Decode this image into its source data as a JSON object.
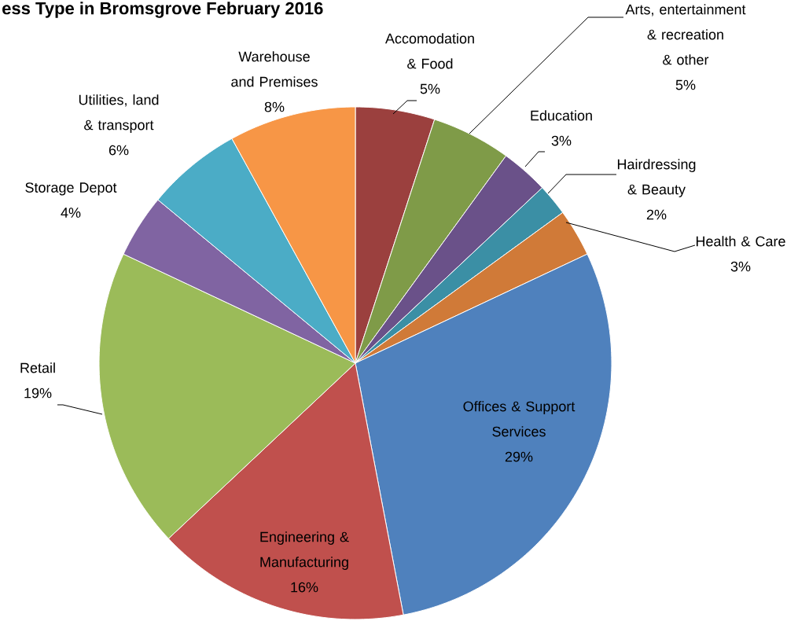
{
  "chart_data": {
    "type": "pie",
    "title": "ess Type in Bromsgrove February 2016",
    "categories": [
      "Accomodation & Food",
      "Arts, entertainment & recreation & other",
      "Education",
      "Hairdressing & Beauty",
      "Health & Care",
      "Offices & Support Services",
      "Engineering & Manufacturing",
      "Retail",
      "Storage Depot",
      "Utilities, land & transport",
      "Warehouse and Premises"
    ],
    "values": [
      5,
      5,
      3,
      2,
      3,
      29,
      16,
      19,
      4,
      6,
      8
    ],
    "value_labels": [
      "5%",
      "5%",
      "3%",
      "2%",
      "3%",
      "29%",
      "16%",
      "19%",
      "4%",
      "6%",
      "8%"
    ],
    "colors": [
      "#9b403e",
      "#7f9b48",
      "#6a5189",
      "#3b8fa5",
      "#d07a38",
      "#4f81bd",
      "#c0504d",
      "#9bbb59",
      "#8064a2",
      "#4bacc6",
      "#f79646"
    ]
  }
}
